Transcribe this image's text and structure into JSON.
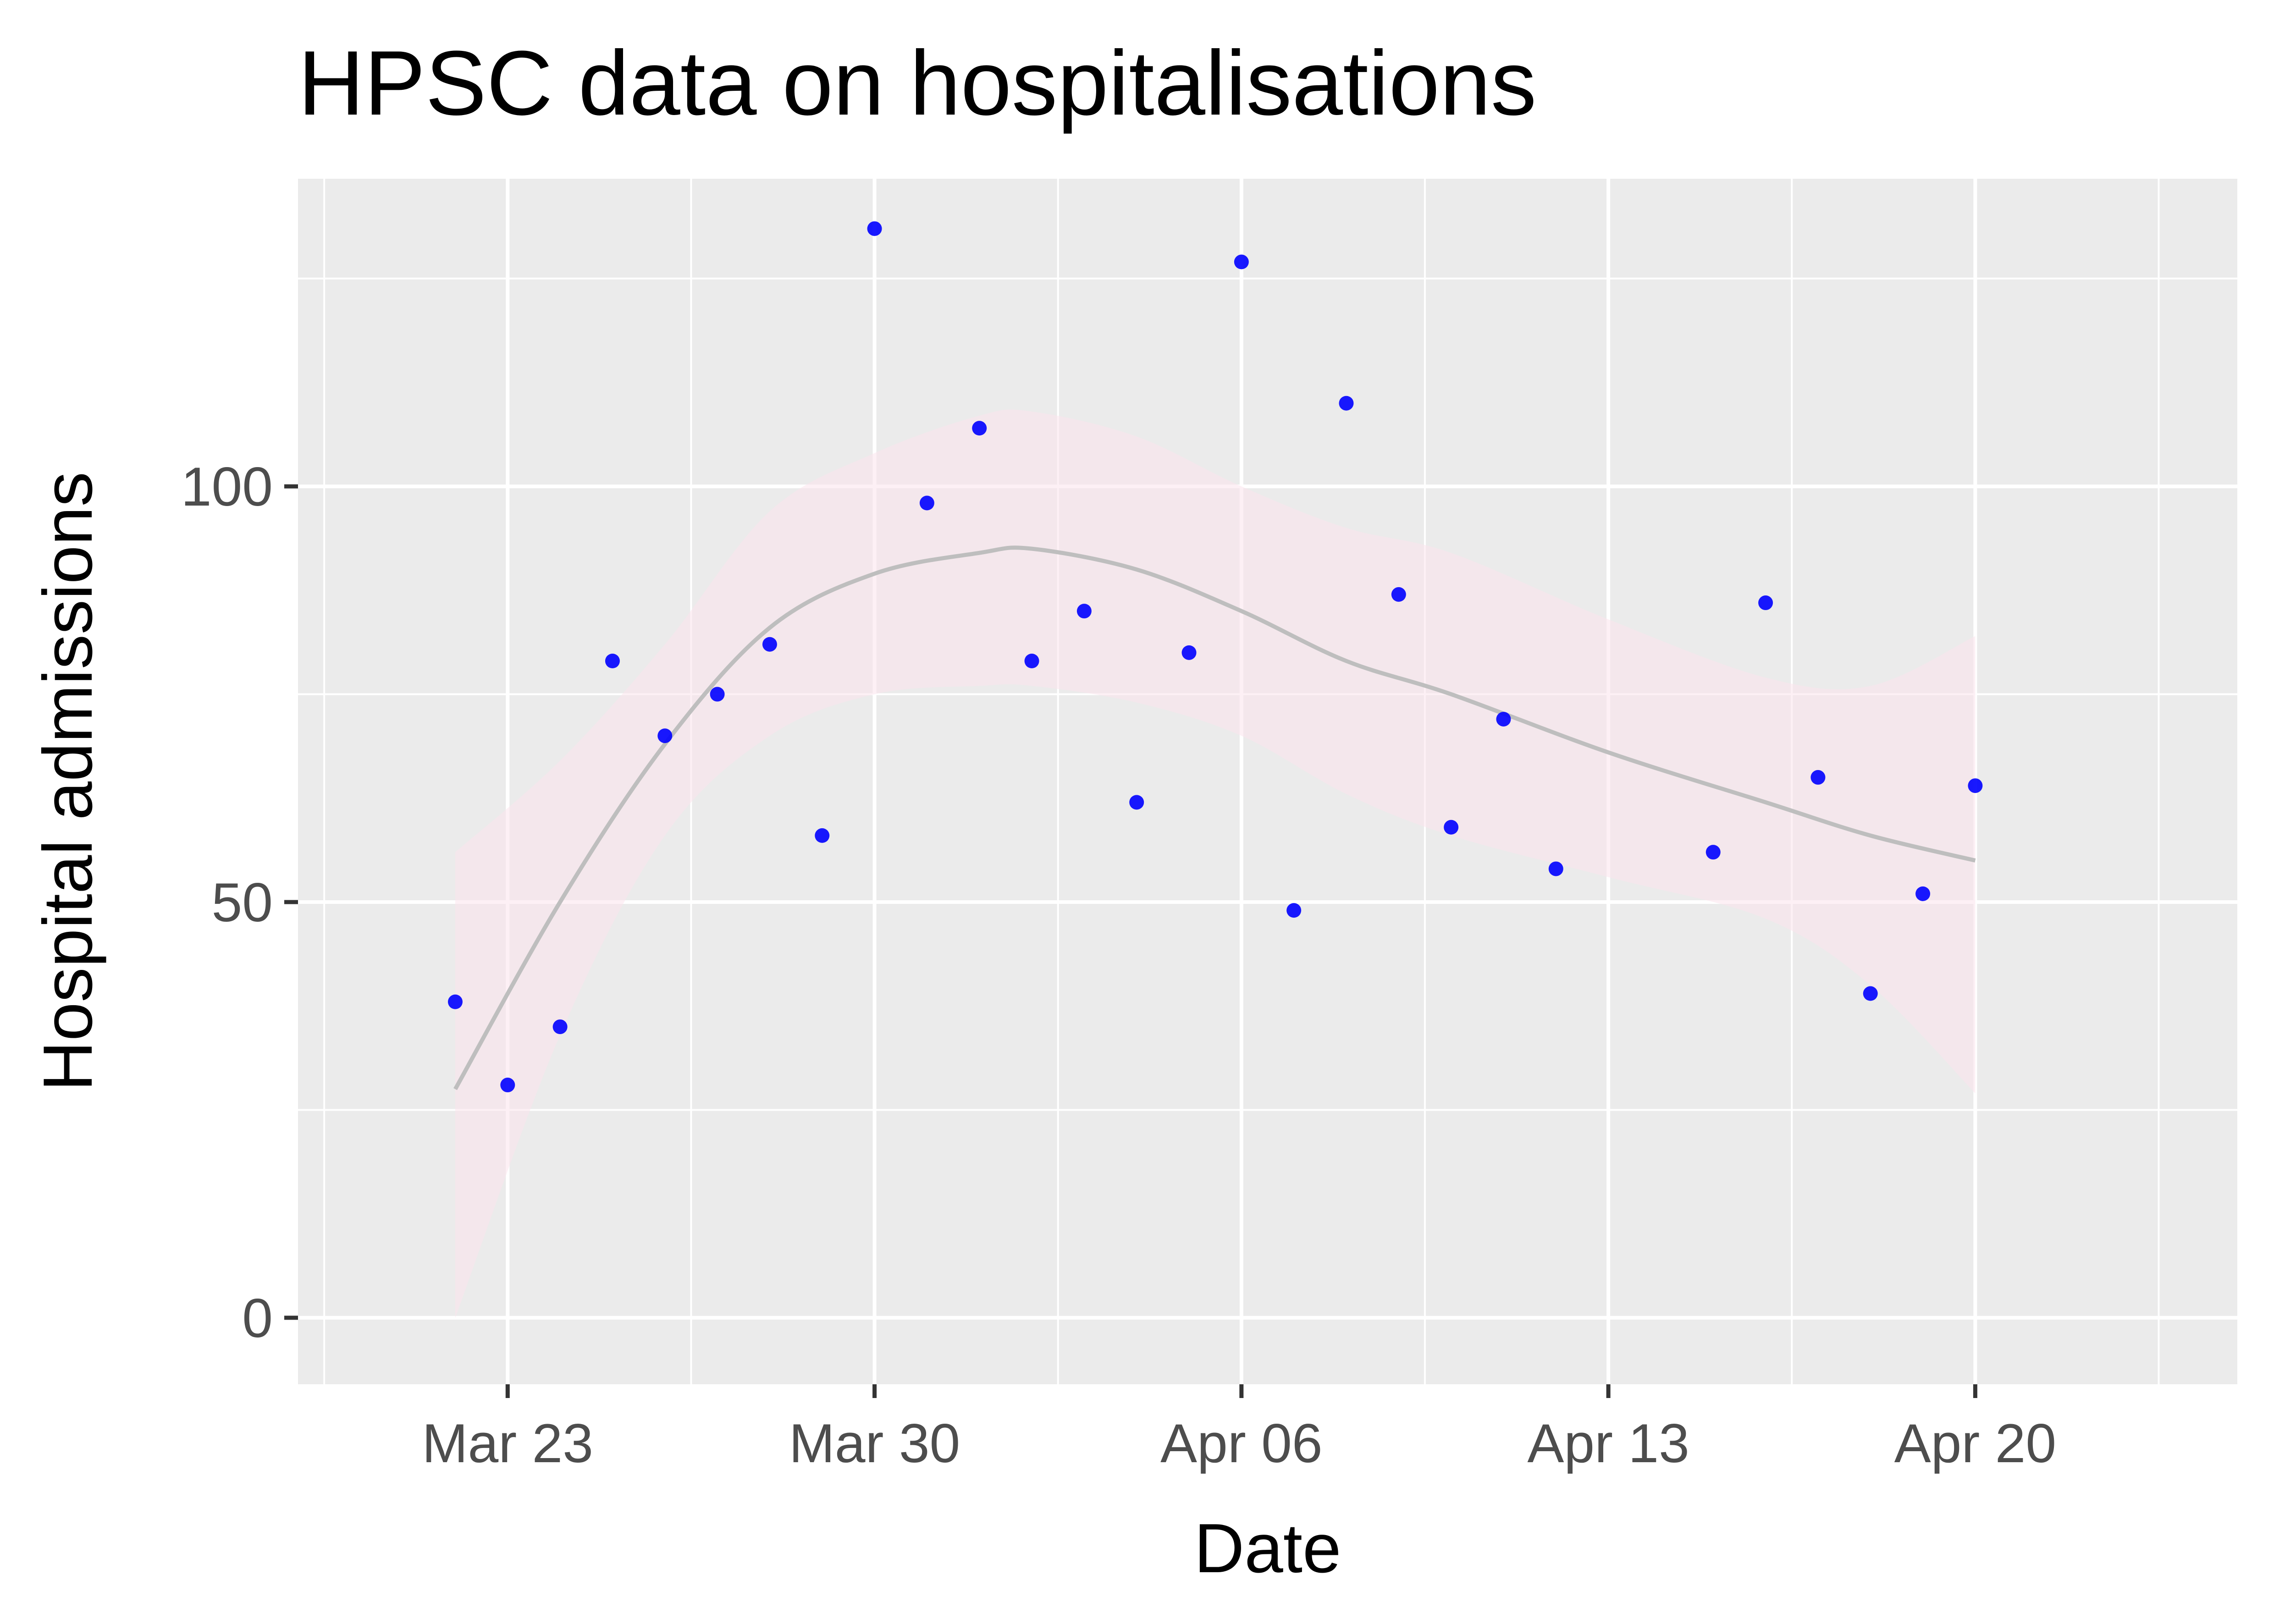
{
  "chart_data": {
    "type": "scatter",
    "title": "HPSC data on hospitalisations",
    "xlabel": "Date",
    "ylabel": "Hospital admissions",
    "x_tick_labels": [
      "Mar 23",
      "Mar 30",
      "Apr 06",
      "Apr 13",
      "Apr 20"
    ],
    "x_tick_dates": [
      "2020-03-23",
      "2020-03-30",
      "2020-04-06",
      "2020-04-13",
      "2020-04-20"
    ],
    "y_ticks": [
      0,
      50,
      100
    ],
    "xlim": [
      "2020-03-19",
      "2020-04-25"
    ],
    "ylim": [
      -8,
      137
    ],
    "grid": true,
    "legend": "none",
    "point_color": "#0000ff",
    "smooth_color": "#bebebe",
    "band_color": "#fce4ec",
    "panel_color": "#ebebeb",
    "series": [
      {
        "values": [
          {
            "x": "2020-03-22",
            "y": 38
          },
          {
            "x": "2020-03-23",
            "y": 28
          },
          {
            "x": "2020-03-24",
            "y": 35
          },
          {
            "x": "2020-03-25",
            "y": 79
          },
          {
            "x": "2020-03-26",
            "y": 70
          },
          {
            "x": "2020-03-27",
            "y": 75
          },
          {
            "x": "2020-03-28",
            "y": 81
          },
          {
            "x": "2020-03-29",
            "y": 58
          },
          {
            "x": "2020-03-30",
            "y": 131
          },
          {
            "x": "2020-03-31",
            "y": 98
          },
          {
            "x": "2020-04-01",
            "y": 107
          },
          {
            "x": "2020-04-02",
            "y": 79
          },
          {
            "x": "2020-04-03",
            "y": 85
          },
          {
            "x": "2020-04-04",
            "y": 62
          },
          {
            "x": "2020-04-05",
            "y": 80
          },
          {
            "x": "2020-04-06",
            "y": 127
          },
          {
            "x": "2020-04-07",
            "y": 49
          },
          {
            "x": "2020-04-08",
            "y": 110
          },
          {
            "x": "2020-04-09",
            "y": 87
          },
          {
            "x": "2020-04-10",
            "y": 59
          },
          {
            "x": "2020-04-11",
            "y": 72
          },
          {
            "x": "2020-04-12",
            "y": 54
          },
          {
            "x": "2020-04-15",
            "y": 56
          },
          {
            "x": "2020-04-16",
            "y": 86
          },
          {
            "x": "2020-04-17",
            "y": 65
          },
          {
            "x": "2020-04-18",
            "y": 39
          },
          {
            "x": "2020-04-19",
            "y": 51
          },
          {
            "x": "2020-04-20",
            "y": 64
          }
        ]
      }
    ],
    "smooth": [
      {
        "x": "2020-03-22",
        "y": 27.5,
        "lo": 0,
        "hi": 56
      },
      {
        "x": "2020-03-24",
        "y": 50,
        "lo": 34,
        "hi": 67
      },
      {
        "x": "2020-03-26",
        "y": 69,
        "lo": 58,
        "hi": 81
      },
      {
        "x": "2020-03-28",
        "y": 83,
        "lo": 70,
        "hi": 97
      },
      {
        "x": "2020-03-30",
        "y": 89.5,
        "lo": 75,
        "hi": 104
      },
      {
        "x": "2020-04-01",
        "y": 92,
        "lo": 76,
        "hi": 108.5
      },
      {
        "x": "2020-04-02",
        "y": 92.5,
        "lo": 76,
        "hi": 109
      },
      {
        "x": "2020-04-04",
        "y": 90,
        "lo": 74,
        "hi": 106
      },
      {
        "x": "2020-04-06",
        "y": 85,
        "lo": 70,
        "hi": 100
      },
      {
        "x": "2020-04-08",
        "y": 79,
        "lo": 63,
        "hi": 95
      },
      {
        "x": "2020-04-10",
        "y": 75,
        "lo": 58,
        "hi": 92
      },
      {
        "x": "2020-04-13",
        "y": 68,
        "lo": 53,
        "hi": 84
      },
      {
        "x": "2020-04-16",
        "y": 62,
        "lo": 48,
        "hi": 77
      },
      {
        "x": "2020-04-18",
        "y": 58,
        "lo": 40,
        "hi": 76
      },
      {
        "x": "2020-04-20",
        "y": 55,
        "lo": 27,
        "hi": 82
      }
    ]
  }
}
